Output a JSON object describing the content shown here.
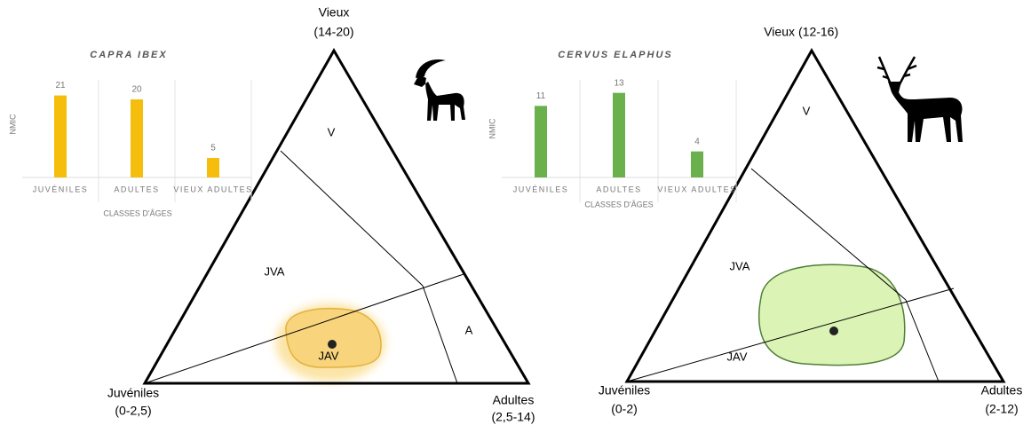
{
  "chart_data": [
    {
      "type": "bar",
      "title": "CAPRA IBEX",
      "y_label": "NMIC",
      "x_label": "CLASSES D'ÂGES",
      "categories": [
        "JUVÉNILES",
        "ADULTES",
        "VIEUX ADULTES"
      ],
      "values": [
        21,
        20,
        5
      ],
      "color": "#f5bd0c",
      "ylim": [
        0,
        25
      ]
    },
    {
      "type": "bar",
      "title": "CERVUS ELAPHUS",
      "y_label": "NMIC",
      "x_label": "CLASSES D'ÂGES",
      "categories": [
        "JUVÉNILES",
        "ADULTES",
        "VIEUX ADULTES"
      ],
      "values": [
        11,
        13,
        4
      ],
      "color": "#6ab04c",
      "ylim": [
        0,
        15
      ]
    }
  ],
  "ternary": [
    {
      "top": {
        "name": "Vieux",
        "range": "(14-20)"
      },
      "left": {
        "name": "Juvéniles",
        "range": "(0-2,5)"
      },
      "right": {
        "name": "Adultes",
        "range": "(2,5-14)"
      },
      "regions": [
        "V",
        "JVA",
        "JAV",
        "A"
      ]
    },
    {
      "top": {
        "name": "Vieux",
        "range": "(12-16)"
      },
      "left": {
        "name": "Juvéniles",
        "range": "(0-2)"
      },
      "right": {
        "name": "Adultes",
        "range": "(2-12)"
      },
      "regions": [
        "V",
        "JVA",
        "JAV"
      ]
    }
  ]
}
